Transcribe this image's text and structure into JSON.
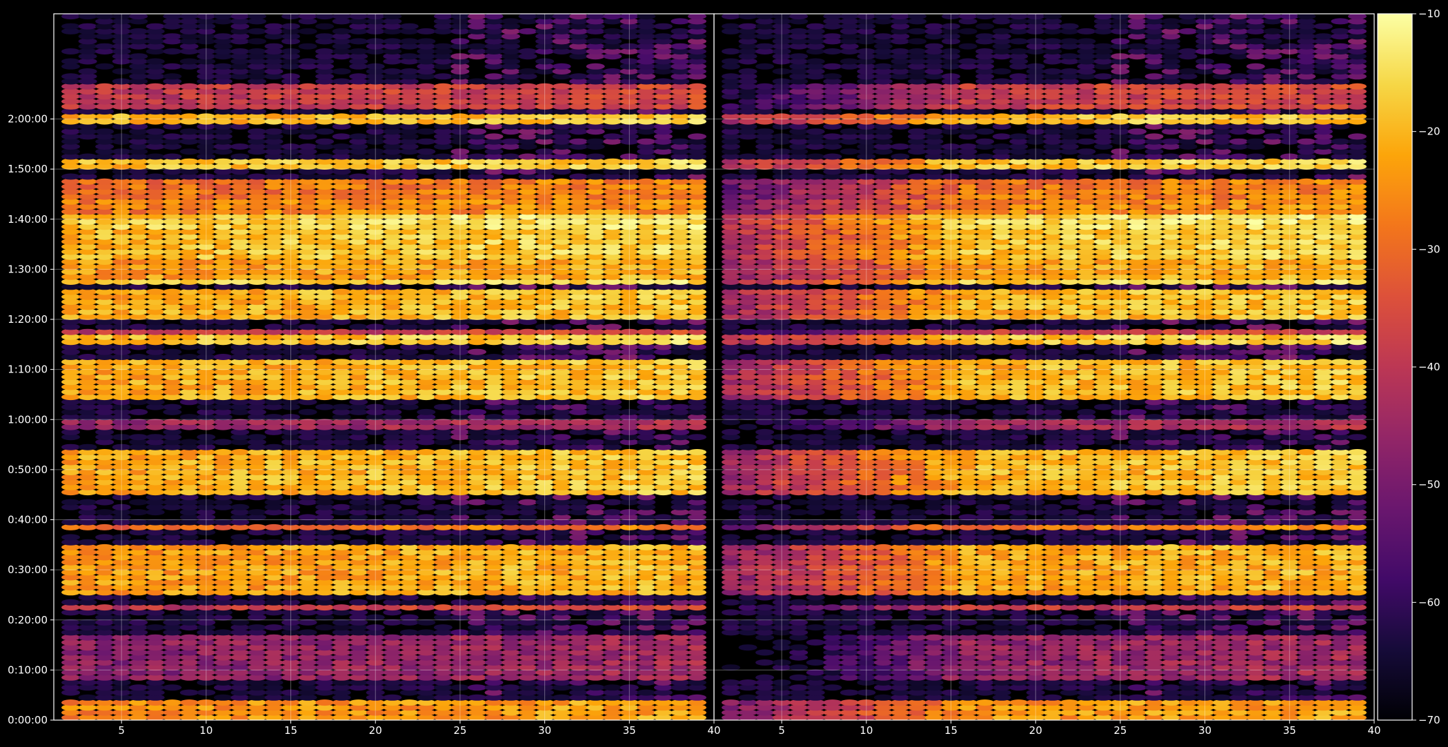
{
  "chart_data": {
    "type": "heatmap",
    "title": "",
    "xlabel": "",
    "ylabel": "",
    "colormap": "inferno",
    "color_scale": {
      "min": -70,
      "max": -10,
      "ticks": [
        -10,
        -20,
        -30,
        -40,
        -50,
        -60,
        -70
      ],
      "tick_labels": [
        "−10",
        "−20",
        "−30",
        "−40",
        "−50",
        "−60",
        "−70"
      ]
    },
    "y_axis": {
      "unit": "seconds",
      "range": [
        0,
        8460
      ],
      "ticks": [
        0,
        600,
        1200,
        1800,
        2400,
        3000,
        3600,
        4200,
        4800,
        5400,
        6000,
        6600,
        7200
      ],
      "tick_labels": [
        "0:00:00",
        "0:10:00",
        "0:20:00",
        "0:30:00",
        "0:40:00",
        "0:50:00",
        "1:00:00",
        "1:10:00",
        "1:20:00",
        "1:30:00",
        "1:40:00",
        "1:50:00",
        "2:00:00"
      ]
    },
    "grid": true,
    "panels": [
      {
        "x_range": [
          1,
          40
        ],
        "x_ticks": [
          5,
          10,
          15,
          20,
          25,
          30,
          35,
          40
        ],
        "x_tick_labels": [
          "5",
          "10",
          "15",
          "20",
          "25",
          "30",
          "35",
          "40"
        ],
        "channels": [
          2,
          39
        ],
        "time_step_s": 60
      },
      {
        "x_range": [
          1,
          40
        ],
        "x_ticks": [
          5,
          10,
          15,
          20,
          25,
          30,
          35,
          40
        ],
        "x_tick_labels": [
          "5",
          "10",
          "15",
          "20",
          "25",
          "30",
          "35",
          "40"
        ],
        "channels": [
          2,
          39
        ],
        "time_step_s": 60
      }
    ],
    "active_bands": [
      {
        "from": 0,
        "to": 240,
        "level": -26
      },
      {
        "from": 480,
        "to": 1020,
        "level": -48
      },
      {
        "from": 1320,
        "to": 1380,
        "level": -40
      },
      {
        "from": 1500,
        "to": 2100,
        "level": -24
      },
      {
        "from": 2280,
        "to": 2340,
        "level": -30
      },
      {
        "from": 2700,
        "to": 3240,
        "level": -22
      },
      {
        "from": 3480,
        "to": 3600,
        "level": -46
      },
      {
        "from": 3840,
        "to": 4320,
        "level": -22
      },
      {
        "from": 4500,
        "to": 4620,
        "level": -20
      },
      {
        "from": 4620,
        "to": 4680,
        "level": -40
      },
      {
        "from": 4800,
        "to": 5160,
        "level": -22
      },
      {
        "from": 5220,
        "to": 5280,
        "level": -19
      },
      {
        "from": 5280,
        "to": 5400,
        "level": -24
      },
      {
        "from": 5400,
        "to": 5520,
        "level": -24
      },
      {
        "from": 5520,
        "to": 5760,
        "level": -20
      },
      {
        "from": 5760,
        "to": 5880,
        "level": -20
      },
      {
        "from": 5880,
        "to": 6060,
        "level": -18
      },
      {
        "from": 6060,
        "to": 6240,
        "level": -28
      },
      {
        "from": 6240,
        "to": 6480,
        "level": -30
      },
      {
        "from": 6600,
        "to": 6720,
        "level": -20
      },
      {
        "from": 7140,
        "to": 7260,
        "level": -21
      },
      {
        "from": 7320,
        "to": 7620,
        "level": -40
      }
    ],
    "right_panel_notes": "same bands as left panel; channels below ~15 are weaker in the right panel"
  }
}
